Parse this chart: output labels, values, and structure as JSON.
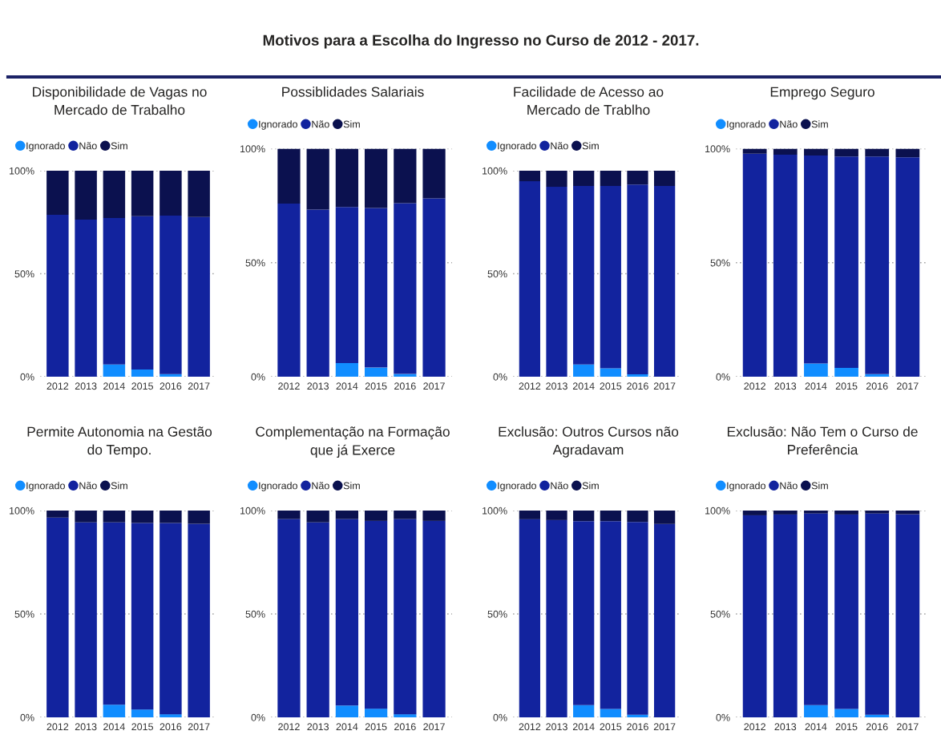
{
  "chart_data": [
    {
      "type": "other",
      "title": "Motivos para a Escolha do Ingresso no Curso de 2012 - 2017."
    },
    {
      "type": "bar",
      "title": "Disponibilidade de Vagas no Mercado de Trabalho",
      "stacked": true,
      "categories": [
        "2012",
        "2013",
        "2014",
        "2015",
        "2016",
        "2017"
      ],
      "series": [
        {
          "name": "Ignorado",
          "color": "#118dff",
          "values": [
            0,
            0,
            5.9,
            3.5,
            1.3,
            0
          ]
        },
        {
          "name": "Não",
          "color": "#12239e",
          "values": [
            78.6,
            76.3,
            71.1,
            74.4,
            76.9,
            77.5
          ]
        },
        {
          "name": "Sim",
          "color": "#0b114f",
          "values": [
            21.4,
            23.7,
            23.0,
            22.1,
            21.8,
            22.5
          ]
        }
      ],
      "ylim": [
        0,
        100
      ],
      "yticks": [
        {
          "value": 0,
          "label": "0%"
        },
        {
          "value": 50,
          "label": "50%"
        },
        {
          "value": 100,
          "label": "100%"
        }
      ],
      "grid": "y",
      "legend": "top left"
    },
    {
      "type": "bar",
      "title": "Possiblidades Salariais",
      "stacked": true,
      "categories": [
        "2012",
        "2013",
        "2014",
        "2015",
        "2016",
        "2017"
      ],
      "series": [
        {
          "name": "Ignorado",
          "color": "#118dff",
          "values": [
            0,
            0,
            6.0,
            4.0,
            1.2,
            0
          ]
        },
        {
          "name": "Não",
          "color": "#12239e",
          "values": [
            75.9,
            73.3,
            68.4,
            70.0,
            74.9,
            78.2
          ]
        },
        {
          "name": "Sim",
          "color": "#0b114f",
          "values": [
            24.1,
            26.7,
            25.6,
            26.0,
            23.9,
            21.8
          ]
        }
      ],
      "ylim": [
        0,
        100
      ],
      "yticks": [
        {
          "value": 0,
          "label": "0%"
        },
        {
          "value": 50,
          "label": "50%"
        },
        {
          "value": 100,
          "label": "100%"
        }
      ],
      "grid": "y",
      "legend": "top left"
    },
    {
      "type": "bar",
      "title": "Facilidade de Acesso ao Mercado de Trablho",
      "stacked": true,
      "categories": [
        "2012",
        "2013",
        "2014",
        "2015",
        "2016",
        "2017"
      ],
      "series": [
        {
          "name": "Ignorado",
          "color": "#118dff",
          "values": [
            0,
            0,
            5.9,
            4.1,
            1.2,
            0
          ]
        },
        {
          "name": "Não",
          "color": "#12239e",
          "values": [
            94.9,
            92.2,
            86.7,
            88.5,
            92.1,
            92.6
          ]
        },
        {
          "name": "Sim",
          "color": "#0b114f",
          "values": [
            5.1,
            7.8,
            7.4,
            7.4,
            6.7,
            7.4
          ]
        }
      ],
      "ylim": [
        0,
        100
      ],
      "yticks": [
        {
          "value": 0,
          "label": "0%"
        },
        {
          "value": 50,
          "label": "50%"
        },
        {
          "value": 100,
          "label": "100%"
        }
      ],
      "grid": "y",
      "legend": "top left"
    },
    {
      "type": "bar",
      "title": "Emprego Seguro",
      "stacked": true,
      "categories": [
        "2012",
        "2013",
        "2014",
        "2015",
        "2016",
        "2017"
      ],
      "series": [
        {
          "name": "Ignorado",
          "color": "#118dff",
          "values": [
            0,
            0,
            5.8,
            3.9,
            1.1,
            0
          ]
        },
        {
          "name": "Não",
          "color": "#12239e",
          "values": [
            97.8,
            97.4,
            91.2,
            92.7,
            95.5,
            96.2
          ]
        },
        {
          "name": "Sim",
          "color": "#0b114f",
          "values": [
            2.2,
            2.6,
            3.0,
            3.4,
            3.4,
            3.8
          ]
        }
      ],
      "ylim": [
        0,
        100
      ],
      "yticks": [
        {
          "value": 0,
          "label": "0%"
        },
        {
          "value": 50,
          "label": "50%"
        },
        {
          "value": 100,
          "label": "100%"
        }
      ],
      "grid": "y",
      "legend": "top left"
    },
    {
      "type": "bar",
      "title": "Permite Autonomia na Gestão do Tempo.",
      "stacked": true,
      "categories": [
        "2012",
        "2013",
        "2014",
        "2015",
        "2016",
        "2017"
      ],
      "series": [
        {
          "name": "Ignorado",
          "color": "#118dff",
          "values": [
            0,
            0,
            6.1,
            3.8,
            1.5,
            0
          ]
        },
        {
          "name": "Não",
          "color": "#12239e",
          "values": [
            96.6,
            94.3,
            88.2,
            90.2,
            92.5,
            93.6
          ]
        },
        {
          "name": "Sim",
          "color": "#0b114f",
          "values": [
            3.4,
            5.7,
            5.7,
            6.0,
            6.0,
            6.4
          ]
        }
      ],
      "ylim": [
        0,
        100
      ],
      "yticks": [
        {
          "value": 0,
          "label": "0%"
        },
        {
          "value": 50,
          "label": "50%"
        },
        {
          "value": 100,
          "label": "100%"
        }
      ],
      "grid": "y",
      "legend": "top left"
    },
    {
      "type": "bar",
      "title": "Complementação na Formação que já Exerce",
      "stacked": true,
      "categories": [
        "2012",
        "2013",
        "2014",
        "2015",
        "2016",
        "2017"
      ],
      "series": [
        {
          "name": "Ignorado",
          "color": "#118dff",
          "values": [
            0,
            0,
            5.7,
            4.2,
            1.5,
            0
          ]
        },
        {
          "name": "Não",
          "color": "#12239e",
          "values": [
            95.9,
            94.3,
            90.2,
            90.8,
            94.4,
            95.0
          ]
        },
        {
          "name": "Sim",
          "color": "#0b114f",
          "values": [
            4.1,
            5.7,
            4.1,
            5.0,
            4.1,
            5.0
          ]
        }
      ],
      "ylim": [
        0,
        100
      ],
      "yticks": [
        {
          "value": 0,
          "label": "0%"
        },
        {
          "value": 50,
          "label": "50%"
        },
        {
          "value": 100,
          "label": "100%"
        }
      ],
      "grid": "y",
      "legend": "top left"
    },
    {
      "type": "bar",
      "title": "Exclusão: Outros Cursos não Agradavam",
      "stacked": true,
      "categories": [
        "2012",
        "2013",
        "2014",
        "2015",
        "2016",
        "2017"
      ],
      "series": [
        {
          "name": "Ignorado",
          "color": "#118dff",
          "values": [
            0,
            0,
            5.9,
            4.1,
            1.3,
            0
          ]
        },
        {
          "name": "Não",
          "color": "#12239e",
          "values": [
            95.8,
            95.4,
            89.0,
            90.8,
            93.2,
            93.5
          ]
        },
        {
          "name": "Sim",
          "color": "#0b114f",
          "values": [
            4.2,
            4.6,
            5.1,
            5.1,
            5.5,
            6.5
          ]
        }
      ],
      "ylim": [
        0,
        100
      ],
      "yticks": [
        {
          "value": 0,
          "label": "0%"
        },
        {
          "value": 50,
          "label": "50%"
        },
        {
          "value": 100,
          "label": "100%"
        }
      ],
      "grid": "y",
      "legend": "top left"
    },
    {
      "type": "bar",
      "title": "Exclusão: Não Tem o Curso de Preferência",
      "stacked": true,
      "categories": [
        "2012",
        "2013",
        "2014",
        "2015",
        "2016",
        "2017"
      ],
      "series": [
        {
          "name": "Ignorado",
          "color": "#118dff",
          "values": [
            0,
            0,
            5.9,
            4.1,
            1.3,
            0
          ]
        },
        {
          "name": "Não",
          "color": "#12239e",
          "values": [
            97.7,
            98.1,
            92.7,
            94.0,
            97.3,
            98.2
          ]
        },
        {
          "name": "Sim",
          "color": "#0b114f",
          "values": [
            2.3,
            1.9,
            1.4,
            1.9,
            1.4,
            1.9
          ]
        }
      ],
      "ylim": [
        0,
        100
      ],
      "yticks": [
        {
          "value": 0,
          "label": "0%"
        },
        {
          "value": 50,
          "label": "50%"
        },
        {
          "value": 100,
          "label": "100%"
        }
      ],
      "grid": "y",
      "legend": "top left"
    }
  ]
}
